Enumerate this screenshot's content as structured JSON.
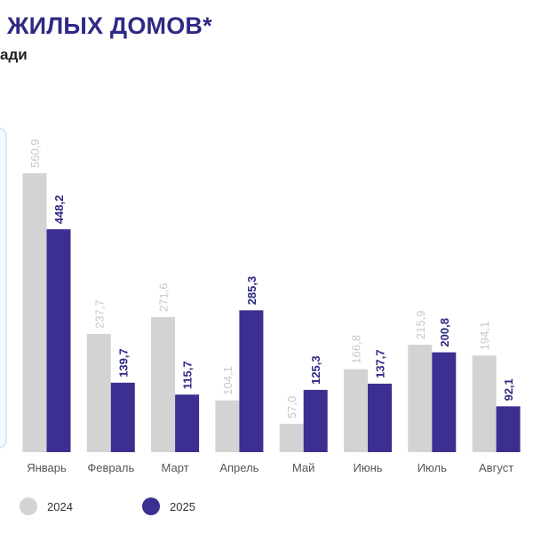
{
  "header": {
    "title": "ЖИЛЫХ ДОМОВ*",
    "subtitle": "ади"
  },
  "colors": {
    "series_2024": "#d3d3d3",
    "series_2025": "#3b2f91",
    "label_2024": "#c8c8c8",
    "label_2025": "#2e2a84",
    "panel_border": "#dbe9f7",
    "tick_text": "#555555"
  },
  "chart_data": {
    "type": "bar",
    "categories": [
      "Январь",
      "Февраль",
      "Март",
      "Апрель",
      "Май",
      "Июнь",
      "Июль",
      "Август"
    ],
    "series": [
      {
        "name": "2024",
        "values": [
          560.9,
          237.7,
          271.6,
          104.1,
          57.0,
          166.8,
          215.9,
          194.1
        ],
        "labels": [
          "560,9",
          "237,7",
          "271,6",
          "104,1",
          "57,0",
          "166,8",
          "215,9",
          "194,1"
        ]
      },
      {
        "name": "2025",
        "values": [
          448.2,
          139.7,
          115.7,
          285.3,
          125.3,
          137.7,
          200.8,
          92.1
        ],
        "labels": [
          "448,2",
          "139,7",
          "115,7",
          "285,3",
          "125,3",
          "137,7",
          "200,8",
          "92,1"
        ]
      }
    ],
    "ylim": [
      0,
      560.9
    ],
    "grid": false,
    "legend_position": "bottom-left"
  }
}
